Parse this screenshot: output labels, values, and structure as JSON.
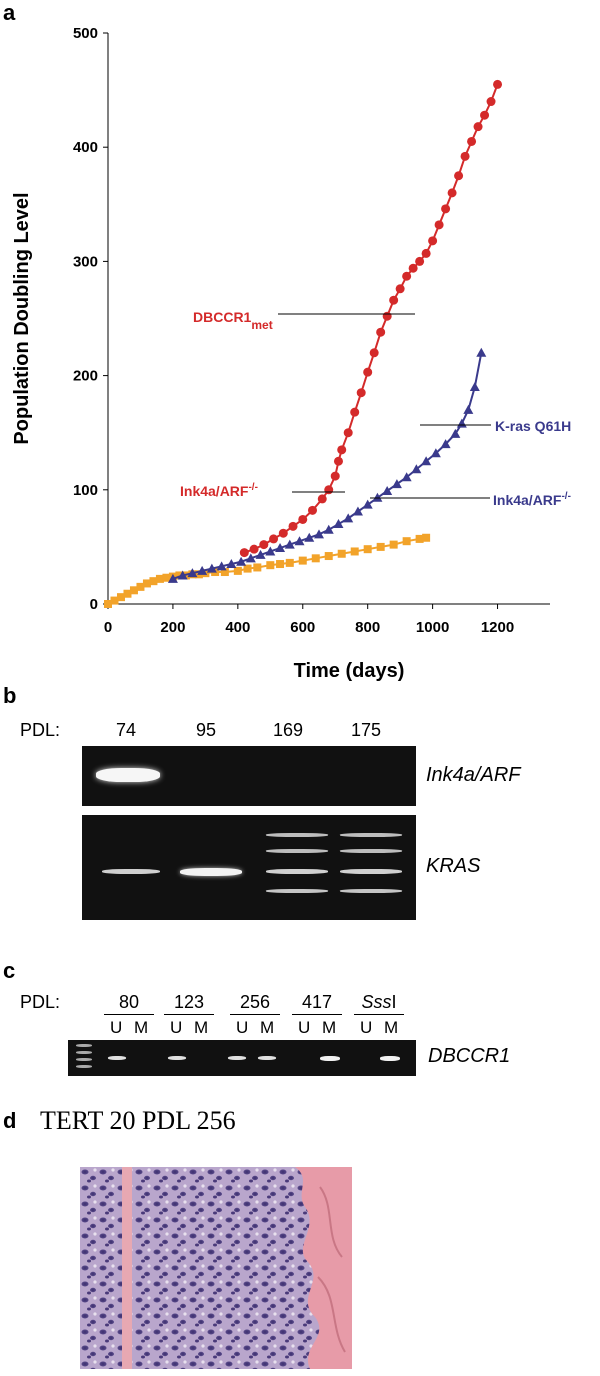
{
  "panels": {
    "a": {
      "letter": "a"
    },
    "b": {
      "letter": "b",
      "pdl_label": "PDL:",
      "lanes": [
        "74",
        "95",
        "169",
        "175"
      ],
      "gene1": "Ink4a/ARF",
      "gene2": "KRAS"
    },
    "c": {
      "letter": "c",
      "pdl_label": "PDL:",
      "groups": [
        {
          "label": "80"
        },
        {
          "label": "123"
        },
        {
          "label": "256"
        },
        {
          "label": "417"
        },
        {
          "label_italic": "Sss",
          "label_rest": "I"
        }
      ],
      "u": "U",
      "m": "M",
      "gene": "DBCCR1"
    },
    "d": {
      "letter": "d",
      "title": "TERT 20 PDL 256"
    }
  },
  "chart_data": {
    "type": "scatter",
    "xlabel": "Time (days)",
    "ylabel": "Population Doubling Level",
    "xlim": [
      0,
      1300
    ],
    "ylim": [
      0,
      500
    ],
    "xticks": [
      0,
      200,
      400,
      600,
      800,
      1000,
      1200
    ],
    "yticks": [
      0,
      100,
      200,
      300,
      400,
      500
    ],
    "series": [
      {
        "color": "#f2a32a",
        "marker": "square",
        "points": [
          [
            0,
            0
          ],
          [
            20,
            3
          ],
          [
            40,
            6
          ],
          [
            60,
            9
          ],
          [
            80,
            12
          ],
          [
            100,
            15
          ],
          [
            120,
            18
          ],
          [
            140,
            20
          ],
          [
            160,
            22
          ],
          [
            180,
            23
          ],
          [
            200,
            24
          ],
          [
            220,
            25
          ],
          [
            240,
            25
          ],
          [
            260,
            26
          ],
          [
            280,
            26
          ],
          [
            300,
            27
          ],
          [
            330,
            28
          ],
          [
            360,
            28
          ],
          [
            400,
            29
          ],
          [
            430,
            31
          ],
          [
            460,
            32
          ],
          [
            500,
            34
          ],
          [
            530,
            35
          ],
          [
            560,
            36
          ],
          [
            600,
            38
          ],
          [
            640,
            40
          ],
          [
            680,
            42
          ],
          [
            720,
            44
          ],
          [
            760,
            46
          ],
          [
            800,
            48
          ],
          [
            840,
            50
          ],
          [
            880,
            52
          ],
          [
            920,
            55
          ],
          [
            960,
            57
          ],
          [
            980,
            58
          ]
        ]
      },
      {
        "color": "#3a3a8c",
        "marker": "triangle",
        "points": [
          [
            200,
            22
          ],
          [
            230,
            25
          ],
          [
            260,
            27
          ],
          [
            290,
            29
          ],
          [
            320,
            31
          ],
          [
            350,
            33
          ],
          [
            380,
            35
          ],
          [
            410,
            37
          ],
          [
            440,
            40
          ],
          [
            470,
            43
          ],
          [
            500,
            46
          ],
          [
            530,
            49
          ],
          [
            560,
            52
          ],
          [
            590,
            55
          ],
          [
            620,
            58
          ],
          [
            650,
            61
          ],
          [
            680,
            65
          ],
          [
            710,
            70
          ],
          [
            740,
            75
          ],
          [
            770,
            81
          ],
          [
            800,
            87
          ],
          [
            830,
            93
          ],
          [
            860,
            99
          ],
          [
            890,
            105
          ],
          [
            920,
            111
          ],
          [
            950,
            118
          ],
          [
            980,
            125
          ],
          [
            1010,
            132
          ],
          [
            1040,
            140
          ],
          [
            1070,
            149
          ],
          [
            1090,
            158
          ],
          [
            1110,
            170
          ],
          [
            1130,
            190
          ],
          [
            1150,
            220
          ]
        ]
      },
      {
        "color": "#d42a2a",
        "marker": "circle",
        "points": [
          [
            420,
            45
          ],
          [
            450,
            48
          ],
          [
            480,
            52
          ],
          [
            510,
            57
          ],
          [
            540,
            62
          ],
          [
            570,
            68
          ],
          [
            600,
            74
          ],
          [
            630,
            82
          ],
          [
            660,
            92
          ],
          [
            680,
            100
          ],
          [
            700,
            112
          ],
          [
            710,
            125
          ],
          [
            720,
            135
          ],
          [
            740,
            150
          ],
          [
            760,
            168
          ],
          [
            780,
            185
          ],
          [
            800,
            203
          ],
          [
            820,
            220
          ],
          [
            840,
            238
          ],
          [
            860,
            252
          ],
          [
            880,
            266
          ],
          [
            900,
            276
          ],
          [
            920,
            287
          ],
          [
            940,
            294
          ],
          [
            960,
            300
          ],
          [
            980,
            307
          ],
          [
            1000,
            318
          ],
          [
            1020,
            332
          ],
          [
            1040,
            346
          ],
          [
            1060,
            360
          ],
          [
            1080,
            375
          ],
          [
            1100,
            392
          ],
          [
            1120,
            405
          ],
          [
            1140,
            418
          ],
          [
            1160,
            428
          ],
          [
            1180,
            440
          ],
          [
            1200,
            455
          ]
        ]
      }
    ],
    "annotations": [
      {
        "main": "DBCCR1",
        "sub": "met",
        "color": "#d42a2a"
      },
      {
        "main": "Ink4a/ARF",
        "sup": "-/-",
        "color": "#d42a2a"
      },
      {
        "main": "K-ras Q61H",
        "color": "#3a3a8c"
      },
      {
        "main": "Ink4a/ARF",
        "sup": "-/-",
        "color": "#3a3a8c"
      }
    ]
  }
}
